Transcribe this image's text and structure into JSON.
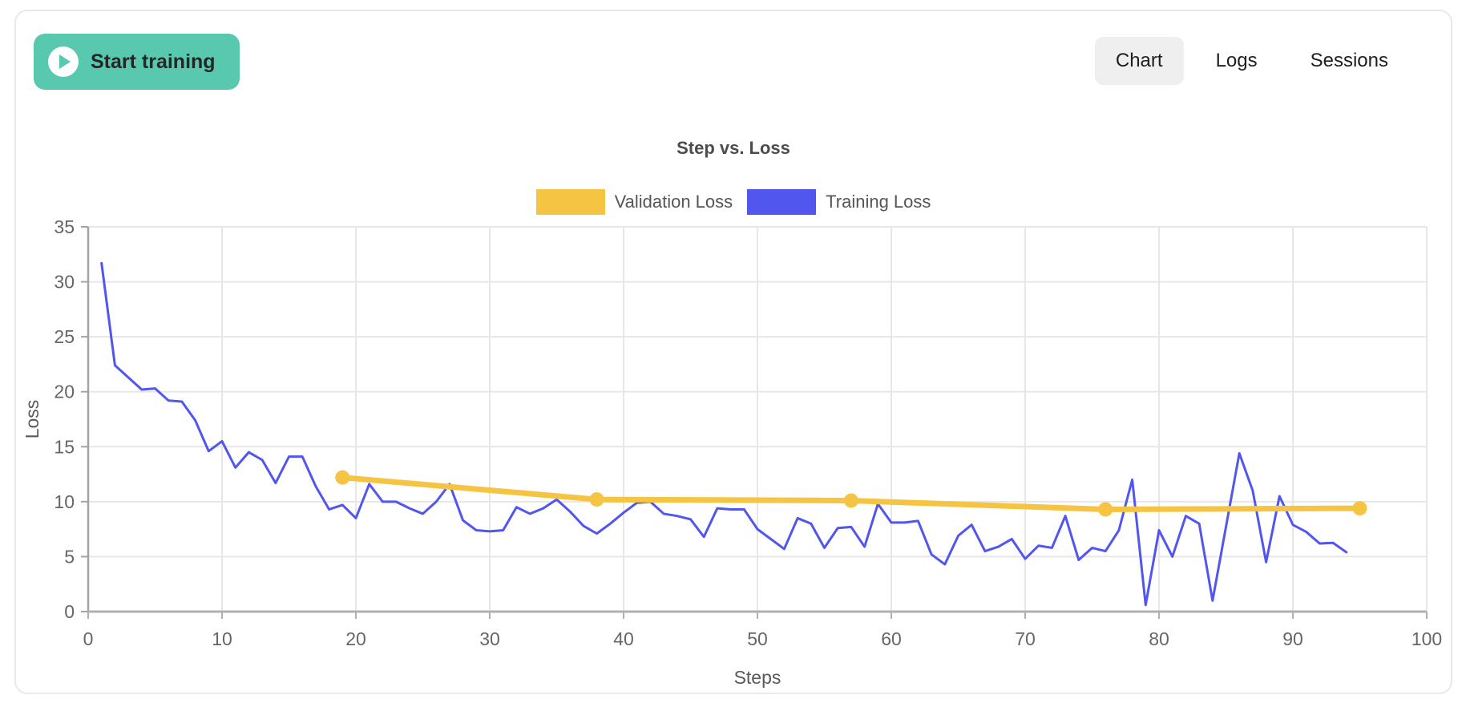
{
  "header": {
    "start_button_label": "Start training",
    "tabs": [
      {
        "label": "Chart",
        "active": true
      },
      {
        "label": "Logs",
        "active": false
      },
      {
        "label": "Sessions",
        "active": false
      }
    ]
  },
  "colors": {
    "accent_teal": "#58c9ae",
    "tab_active_bg": "#efefef",
    "validation_yellow": "#f4c442",
    "training_blue": "#5156ee",
    "gridline": "#e7e7e7",
    "axis": "#b0b0b0",
    "tick_text": "#666666"
  },
  "chart_data": {
    "type": "line",
    "title": "Step vs. Loss",
    "xlabel": "Steps",
    "ylabel": "Loss",
    "xlim": [
      0,
      100
    ],
    "ylim": [
      0,
      35
    ],
    "x_ticks": [
      0,
      10,
      20,
      30,
      40,
      50,
      60,
      70,
      80,
      90,
      100
    ],
    "y_ticks": [
      0,
      5,
      10,
      15,
      20,
      25,
      30,
      35
    ],
    "grid": true,
    "legend_position": "top",
    "series": [
      {
        "name": "Validation Loss",
        "color": "#f4c442",
        "line_width": 7,
        "show_points": true,
        "point_radius": 9,
        "x": [
          19,
          38,
          57,
          76,
          95
        ],
        "values": [
          12.2,
          10.2,
          10.1,
          9.3,
          9.4
        ]
      },
      {
        "name": "Training Loss",
        "color": "#5156ee",
        "line_width": 3,
        "show_points": false,
        "x": [
          1,
          2,
          3,
          4,
          5,
          6,
          7,
          8,
          9,
          10,
          11,
          12,
          13,
          14,
          15,
          16,
          17,
          18,
          19,
          20,
          21,
          22,
          23,
          24,
          25,
          26,
          27,
          28,
          29,
          30,
          31,
          32,
          33,
          34,
          35,
          36,
          37,
          38,
          39,
          40,
          41,
          42,
          43,
          44,
          45,
          46,
          47,
          48,
          49,
          50,
          51,
          52,
          53,
          54,
          55,
          56,
          57,
          58,
          59,
          60,
          61,
          62,
          63,
          64,
          65,
          66,
          67,
          68,
          69,
          70,
          71,
          72,
          73,
          74,
          75,
          76,
          77,
          78,
          79,
          80,
          81,
          82,
          83,
          84,
          85,
          86,
          87,
          88,
          89,
          90,
          91,
          92,
          93,
          94
        ],
        "values": [
          31.7,
          22.4,
          21.3,
          20.2,
          20.3,
          19.2,
          19.1,
          17.4,
          14.6,
          15.5,
          13.1,
          14.5,
          13.8,
          11.7,
          14.1,
          14.1,
          11.4,
          9.3,
          9.7,
          8.5,
          11.6,
          10.0,
          10.0,
          9.4,
          8.9,
          10.0,
          11.6,
          8.3,
          7.4,
          7.3,
          7.4,
          9.5,
          8.9,
          9.4,
          10.2,
          9.1,
          7.8,
          7.1,
          8.0,
          9.0,
          9.9,
          10.0,
          8.9,
          8.7,
          8.4,
          6.8,
          9.4,
          9.3,
          9.3,
          7.5,
          6.6,
          5.7,
          8.5,
          8.0,
          5.8,
          7.6,
          7.7,
          5.9,
          9.8,
          8.1,
          8.1,
          8.25,
          5.2,
          4.3,
          6.9,
          7.9,
          5.5,
          5.9,
          6.6,
          4.8,
          6.0,
          5.8,
          8.7,
          4.7,
          5.8,
          5.5,
          7.4,
          12.0,
          0.6,
          7.4,
          5.0,
          8.7,
          8.0,
          1.0,
          7.7,
          14.4,
          11.0,
          4.5,
          10.5,
          7.9,
          7.25,
          6.2,
          6.25,
          5.4
        ]
      }
    ]
  }
}
